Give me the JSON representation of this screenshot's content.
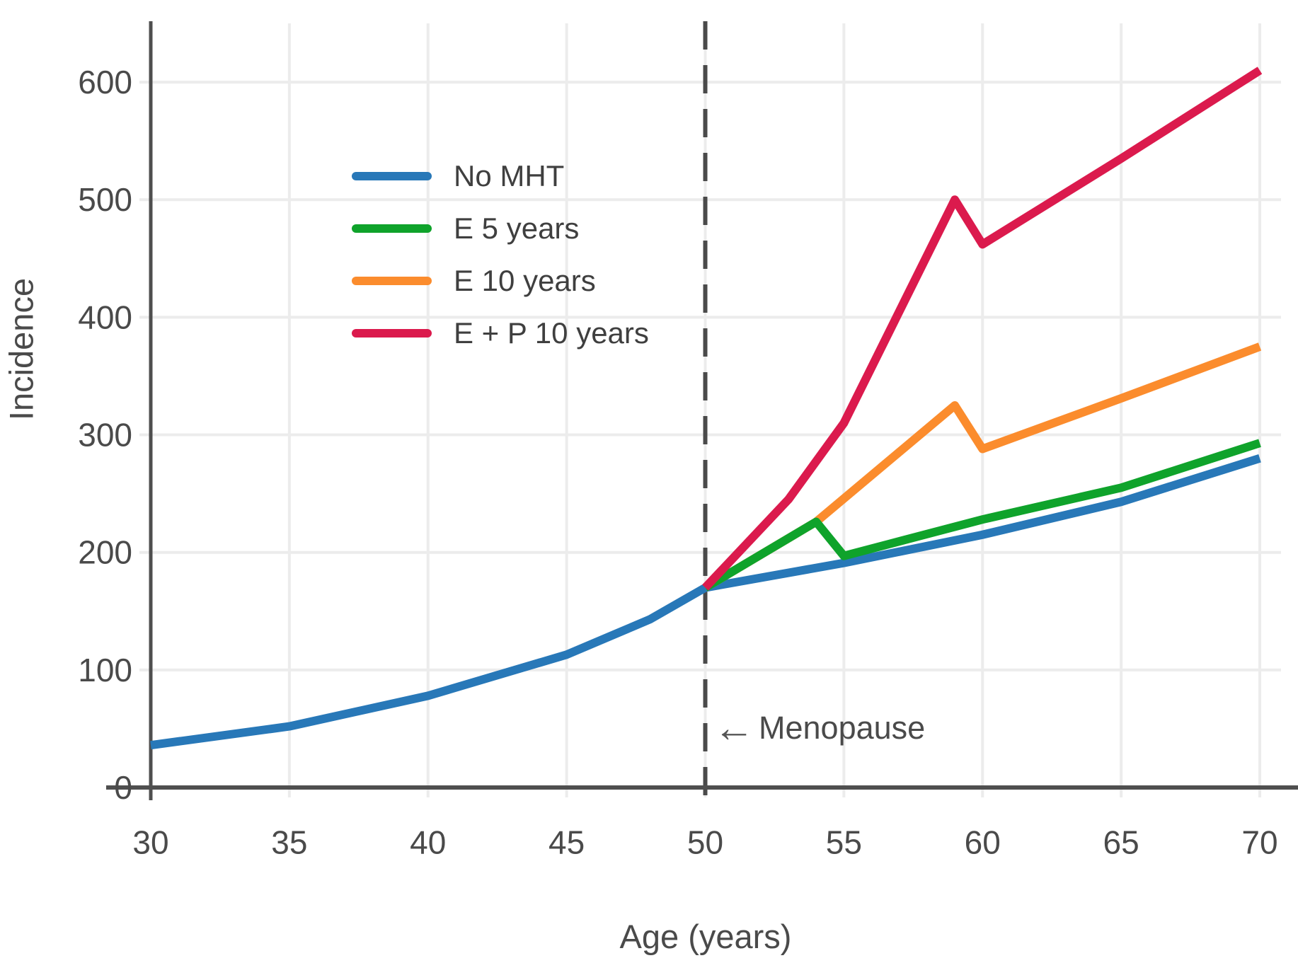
{
  "chart_data": {
    "type": "line",
    "title": "",
    "xlabel": "Age (years)",
    "ylabel": "Incidence",
    "xlim": [
      30,
      70
    ],
    "ylim": [
      0,
      650
    ],
    "xticks": [
      30,
      35,
      40,
      45,
      50,
      55,
      60,
      65,
      70
    ],
    "yticks": [
      0,
      100,
      200,
      300,
      400,
      500,
      600
    ],
    "grid": true,
    "legend_position": "upper-left-inside",
    "vline": {
      "x": 50,
      "style": "dashed",
      "color": "#4a4a4a"
    },
    "annotation": {
      "label": "Menopause",
      "icon": "left-arrow",
      "x": 50,
      "y": 55
    },
    "colors": {
      "axis": "#4f4f4f",
      "grid": "#ececec",
      "tick_text": "#4a4a4a"
    },
    "series": [
      {
        "name": "No MHT",
        "color": "#2878b8",
        "points": [
          [
            30,
            36
          ],
          [
            35,
            52
          ],
          [
            40,
            78
          ],
          [
            45,
            113
          ],
          [
            48,
            143
          ],
          [
            50,
            170
          ],
          [
            55,
            191
          ],
          [
            60,
            215
          ],
          [
            65,
            243
          ],
          [
            70,
            280
          ]
        ]
      },
      {
        "name": "E 5 years",
        "color": "#0fa32b",
        "points": [
          [
            50,
            170
          ],
          [
            54,
            226
          ],
          [
            55,
            197
          ],
          [
            60,
            228
          ],
          [
            65,
            255
          ],
          [
            70,
            293
          ]
        ]
      },
      {
        "name": "E 10 years",
        "color": "#fb8c2d",
        "points": [
          [
            50,
            170
          ],
          [
            54,
            226
          ],
          [
            59,
            325
          ],
          [
            60,
            288
          ],
          [
            65,
            331
          ],
          [
            70,
            375
          ]
        ]
      },
      {
        "name": "E + P 10 years",
        "color": "#db1a4d",
        "points": [
          [
            50,
            170
          ],
          [
            53,
            245
          ],
          [
            55,
            310
          ],
          [
            59,
            500
          ],
          [
            60,
            462
          ],
          [
            65,
            535
          ],
          [
            70,
            610
          ]
        ]
      }
    ]
  }
}
